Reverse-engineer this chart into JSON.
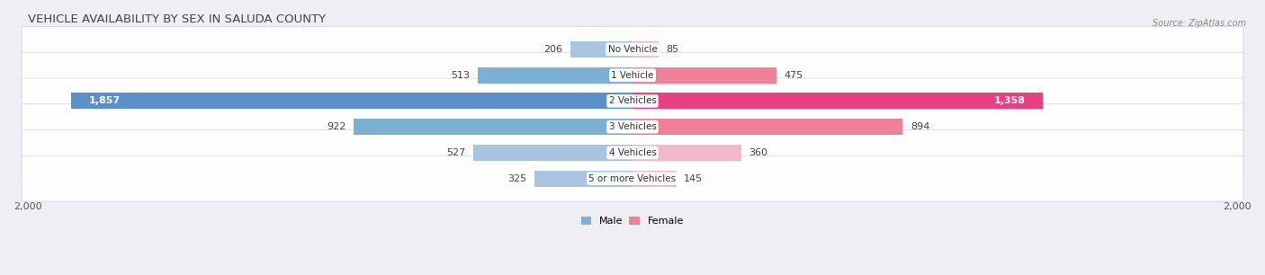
{
  "title": "VEHICLE AVAILABILITY BY SEX IN SALUDA COUNTY",
  "source": "Source: ZipAtlas.com",
  "categories": [
    "No Vehicle",
    "1 Vehicle",
    "2 Vehicles",
    "3 Vehicles",
    "4 Vehicles",
    "5 or more Vehicles"
  ],
  "male_values": [
    206,
    513,
    1857,
    922,
    527,
    325
  ],
  "female_values": [
    85,
    475,
    1358,
    894,
    360,
    145
  ],
  "male_colors": [
    "#a8c4e0",
    "#7bafd4",
    "#5b8fc7",
    "#7bafd4",
    "#a8c4e0",
    "#a8c4e0"
  ],
  "female_colors": [
    "#f4b8cc",
    "#f08098",
    "#e84080",
    "#f08098",
    "#f4b8cc",
    "#f4b8cc"
  ],
  "male_label_inside": [
    false,
    false,
    true,
    false,
    false,
    false
  ],
  "female_label_inside": [
    false,
    false,
    true,
    false,
    false,
    false
  ],
  "axis_max": 2000,
  "legend_male_color": "#7bafd4",
  "legend_female_color": "#f08098",
  "legend_male": "Male",
  "legend_female": "Female",
  "title_fontsize": 9.5,
  "label_fontsize": 8,
  "category_fontsize": 7.5,
  "axis_tick_fontsize": 8,
  "background_color": "#eeeef4",
  "row_bg_color": "#e0e0ea",
  "row_highlight_color": "#f8f8fc"
}
